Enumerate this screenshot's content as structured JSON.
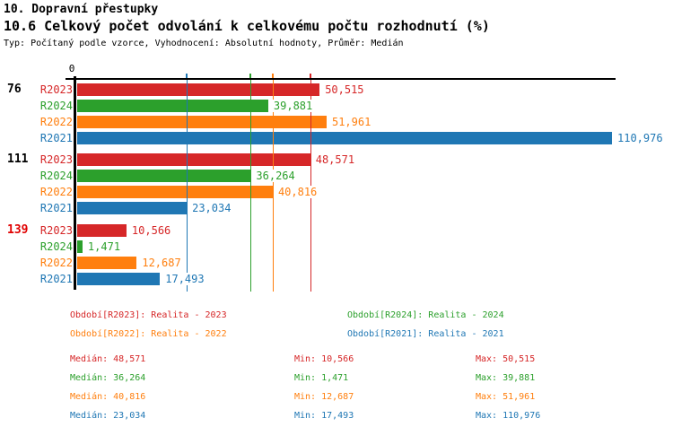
{
  "header": {
    "title": "10. Dopravní přestupky",
    "subtitle": "10.6 Celkový počet odvolání k celkovému počtu rozhodnutí (%)",
    "meta": "Typ: Počítaný podle vzorce, Vyhodnocení: Absolutní hodnoty, Průměr: Medián"
  },
  "chart_data": {
    "type": "bar",
    "orientation": "horizontal",
    "title": "10.6 Celkový počet odvolání k celkovému počtu rozhodnutí (%)",
    "axis": {
      "zero_label": "0",
      "xmin": 0,
      "xmax": 111.5,
      "grid": "median-lines"
    },
    "series_order": [
      "R2023",
      "R2024",
      "R2022",
      "R2021"
    ],
    "series_colors": {
      "R2023": "#d62728",
      "R2024": "#2ca02c",
      "R2022": "#ff7f0e",
      "R2021": "#1f77b4"
    },
    "groups": [
      {
        "label": "76",
        "label_color": "#000000",
        "bars": [
          {
            "series": "R2023",
            "value": 50.515,
            "display": "50,515"
          },
          {
            "series": "R2024",
            "value": 39.881,
            "display": "39,881"
          },
          {
            "series": "R2022",
            "value": 51.961,
            "display": "51,961"
          },
          {
            "series": "R2021",
            "value": 110.976,
            "display": "110,976"
          }
        ]
      },
      {
        "label": "111",
        "label_color": "#000000",
        "bars": [
          {
            "series": "R2023",
            "value": 48.571,
            "display": "48,571"
          },
          {
            "series": "R2024",
            "value": 36.264,
            "display": "36,264"
          },
          {
            "series": "R2022",
            "value": 40.816,
            "display": "40,816"
          },
          {
            "series": "R2021",
            "value": 23.034,
            "display": "23,034"
          }
        ]
      },
      {
        "label": "139",
        "label_color": "#e00000",
        "bars": [
          {
            "series": "R2023",
            "value": 10.566,
            "display": "10,566"
          },
          {
            "series": "R2024",
            "value": 1.471,
            "display": "1,471"
          },
          {
            "series": "R2022",
            "value": 12.687,
            "display": "12,687"
          },
          {
            "series": "R2021",
            "value": 17.493,
            "display": "17,493"
          }
        ]
      }
    ],
    "medians": [
      {
        "series": "R2023",
        "value": 48.571,
        "display": "48,571"
      },
      {
        "series": "R2024",
        "value": 36.264,
        "display": "36,264"
      },
      {
        "series": "R2022",
        "value": 40.816,
        "display": "40,816"
      },
      {
        "series": "R2021",
        "value": 23.034,
        "display": "23,034"
      }
    ],
    "legend_rows": [
      [
        {
          "text": "Období[R2023]: Realita - 2023",
          "color": "#d62728"
        },
        {
          "text": "Období[R2024]: Realita - 2024",
          "color": "#2ca02c"
        }
      ],
      [
        {
          "text": "Období[R2022]: Realita - 2022",
          "color": "#ff7f0e"
        },
        {
          "text": "Období[R2021]: Realita - 2021",
          "color": "#1f77b4"
        }
      ]
    ]
  },
  "stats": {
    "rows": [
      {
        "color": "#d62728",
        "median": "Medián: 48,571",
        "min": "Min: 10,566",
        "max": "Max: 50,515"
      },
      {
        "color": "#2ca02c",
        "median": "Medián: 36,264",
        "min": "Min: 1,471",
        "max": "Max: 39,881"
      },
      {
        "color": "#ff7f0e",
        "median": "Medián: 40,816",
        "min": "Min: 12,687",
        "max": "Max: 51,961"
      },
      {
        "color": "#1f77b4",
        "median": "Medián: 23,034",
        "min": "Min: 17,493",
        "max": "Max: 110,976"
      }
    ]
  }
}
